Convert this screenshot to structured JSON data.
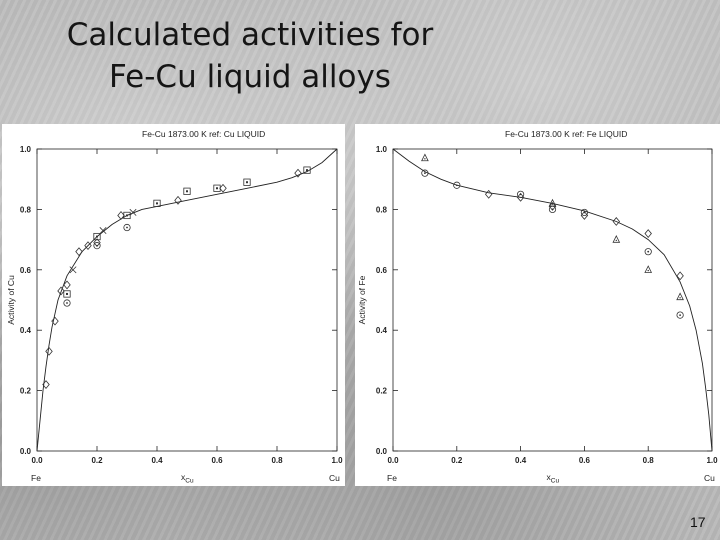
{
  "slide": {
    "title_line1": "Calculated activities for",
    "title_line2": "Fe-Cu liquid alloys",
    "number": "17"
  },
  "chart_data": [
    {
      "type": "scatter",
      "title": "Fe-Cu    1873.00 K   ref: Cu LIQUID",
      "xlabel": "x",
      "xlabel_sub": "Cu",
      "ylabel": "Activity of Cu",
      "xlim": [
        0,
        1
      ],
      "ylim": [
        0,
        1
      ],
      "xticks": [
        "0.0",
        "0.2",
        "0.4",
        "0.6",
        "0.8",
        "1.0"
      ],
      "yticks": [
        "0.0",
        "0.2",
        "0.4",
        "0.6",
        "0.8",
        "1.0"
      ],
      "x_end_labels": [
        "Fe",
        "Cu"
      ],
      "grid": false,
      "curve": {
        "x": [
          0,
          0.01,
          0.02,
          0.03,
          0.04,
          0.05,
          0.07,
          0.1,
          0.15,
          0.2,
          0.25,
          0.3,
          0.35,
          0.4,
          0.5,
          0.6,
          0.7,
          0.8,
          0.85,
          0.9,
          0.95,
          1.0
        ],
        "y": [
          0,
          0.1,
          0.2,
          0.28,
          0.35,
          0.41,
          0.5,
          0.58,
          0.66,
          0.71,
          0.75,
          0.78,
          0.8,
          0.81,
          0.83,
          0.85,
          0.87,
          0.89,
          0.905,
          0.925,
          0.955,
          1.0
        ]
      },
      "series": [
        {
          "marker": "diamond",
          "x": [
            0.03,
            0.04,
            0.06,
            0.08,
            0.1,
            0.14,
            0.17,
            0.2,
            0.28,
            0.47,
            0.62,
            0.87
          ],
          "y": [
            0.22,
            0.33,
            0.43,
            0.53,
            0.55,
            0.66,
            0.68,
            0.69,
            0.78,
            0.83,
            0.87,
            0.92
          ]
        },
        {
          "marker": "square",
          "x": [
            0.1,
            0.2,
            0.3,
            0.4,
            0.5,
            0.6,
            0.7,
            0.9
          ],
          "y": [
            0.52,
            0.71,
            0.78,
            0.82,
            0.86,
            0.87,
            0.89,
            0.93
          ]
        },
        {
          "marker": "circle",
          "x": [
            0.1,
            0.2,
            0.3
          ],
          "y": [
            0.49,
            0.68,
            0.74
          ]
        },
        {
          "marker": "cross",
          "x": [
            0.12,
            0.22,
            0.32
          ],
          "y": [
            0.6,
            0.73,
            0.79
          ]
        }
      ]
    },
    {
      "type": "scatter",
      "title": "Fe-Cu    1873.00 K   ref: Fe LIQUID",
      "xlabel": "x",
      "xlabel_sub": "Cu",
      "ylabel": "Activity of Fe",
      "xlim": [
        0,
        1
      ],
      "ylim": [
        0,
        1
      ],
      "xticks": [
        "0.0",
        "0.2",
        "0.4",
        "0.6",
        "0.8",
        "1.0"
      ],
      "yticks": [
        "0.0",
        "0.2",
        "0.4",
        "0.6",
        "0.8",
        "1.0"
      ],
      "x_end_labels": [
        "Fe",
        "Cu"
      ],
      "grid": false,
      "curve": {
        "x": [
          0,
          0.05,
          0.1,
          0.15,
          0.2,
          0.3,
          0.4,
          0.5,
          0.6,
          0.7,
          0.75,
          0.8,
          0.85,
          0.9,
          0.93,
          0.95,
          0.97,
          0.98,
          0.99,
          1.0
        ],
        "y": [
          1.0,
          0.96,
          0.925,
          0.9,
          0.88,
          0.855,
          0.84,
          0.82,
          0.795,
          0.76,
          0.735,
          0.7,
          0.65,
          0.56,
          0.48,
          0.4,
          0.29,
          0.21,
          0.12,
          0
        ]
      },
      "series": [
        {
          "marker": "triangle",
          "x": [
            0.1,
            0.5,
            0.7,
            0.8,
            0.9
          ],
          "y": [
            0.97,
            0.82,
            0.7,
            0.6,
            0.51
          ]
        },
        {
          "marker": "circle",
          "x": [
            0.1,
            0.2,
            0.4,
            0.5,
            0.6,
            0.8,
            0.9
          ],
          "y": [
            0.92,
            0.88,
            0.85,
            0.8,
            0.79,
            0.66,
            0.45
          ]
        },
        {
          "marker": "diamond",
          "x": [
            0.3,
            0.4,
            0.5,
            0.6,
            0.7,
            0.8,
            0.9
          ],
          "y": [
            0.85,
            0.84,
            0.81,
            0.78,
            0.76,
            0.72,
            0.58
          ]
        }
      ]
    }
  ]
}
